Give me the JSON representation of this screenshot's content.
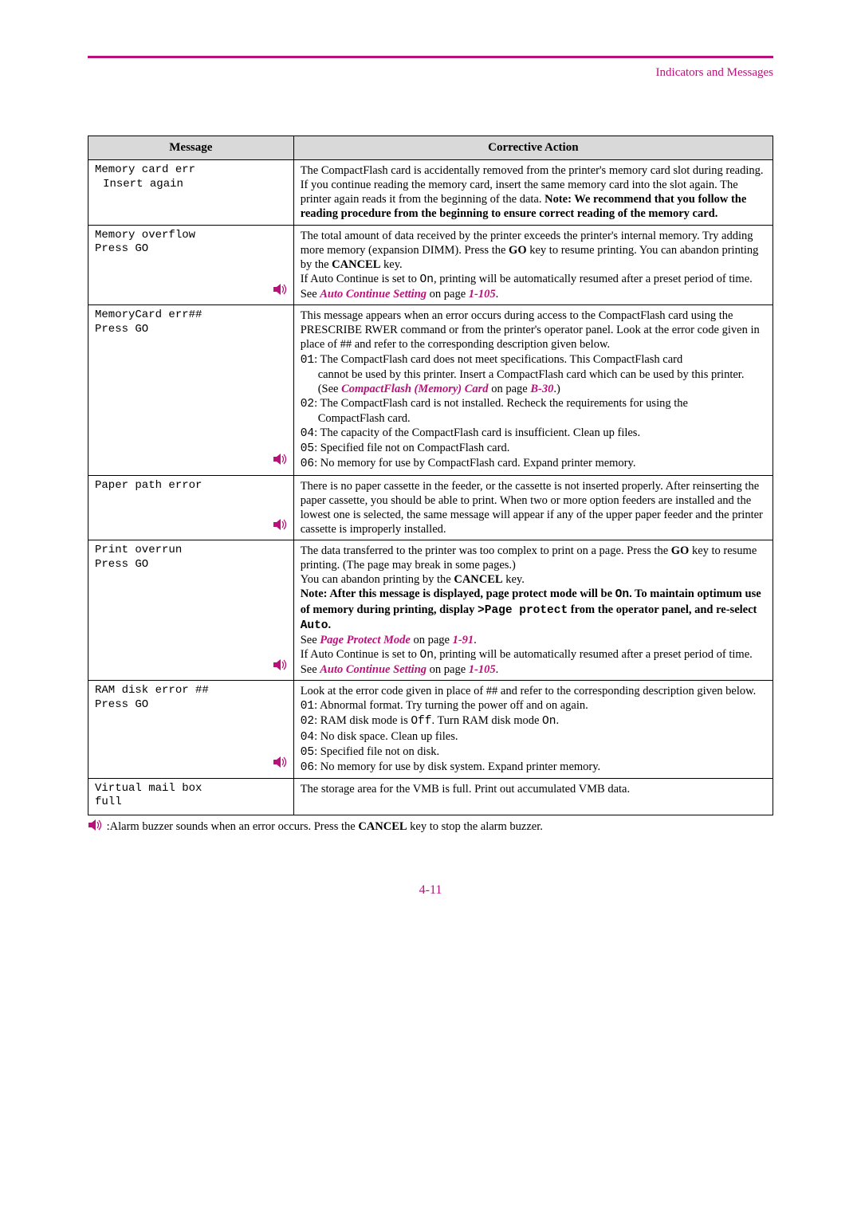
{
  "header": {
    "section_label": "Indicators and Messages"
  },
  "table": {
    "headers": {
      "message": "Message",
      "action": "Corrective Action"
    },
    "rows": [
      {
        "msg1": "Memory card err",
        "msg2": "Insert again",
        "buzzer": false,
        "action_html": "The CompactFlash card is accidentally removed from the printer's memory card slot during reading. If you continue reading the memory card, insert the same memory card into the slot again. The printer again reads it from the beginning of the data. <span class='bold'>Note: We recommend that you follow the reading procedure from the beginning to ensure correct reading of the memory card.</span>"
      },
      {
        "msg1": "Memory overflow",
        "msg2": "Press GO",
        "msg2_noindent": true,
        "buzzer": true,
        "action_html": "The total amount of data received by the printer exceeds the printer's internal memory. Try adding more memory (expansion DIMM). Press the <span class='bold'>GO</span> key to resume printing. You can abandon printing by the <span class='bold'>CANCEL</span> key.<br>If Auto Continue is set to <span class='mono'>On</span>, printing will be automatically resumed after a preset period of time. See <span class='link'>Auto Continue Setting</span> on page <span class='pagelink'>1-105</span>."
      },
      {
        "msg1": "MemoryCard err##",
        "msg2": "Press GO",
        "msg2_noindent": true,
        "buzzer": true,
        "action_html": "This message appears when an error occurs during access to the CompactFlash card using the PRESCRIBE RWER command or from the printer's operator panel. Look at the error code given in place of ## and refer to the corresponding description given below.<br><span class='mono'>01</span>: The CompactFlash card does not meet specifications.  This CompactFlash card<div class='indent'>cannot be used by this printer.  Insert a CompactFlash card which can be used by this printer.</div><div class='indent'>(See <span class='link'>CompactFlash (Memory) Card</span> on page <span class='pagelink'>B-30</span>.)</div><span class='mono'>02</span>: The CompactFlash card is not installed. Recheck the requirements for using the<div class='indent'>CompactFlash card.</div><span class='mono'>04</span>: The capacity of the CompactFlash card is insufficient. Clean up files.<br><span class='mono'>05</span>: Specified file not on CompactFlash card.<br><span class='mono'>06</span>: No memory for use by CompactFlash card. Expand printer memory."
      },
      {
        "msg1": "Paper path error",
        "msg2": "",
        "buzzer": true,
        "action_html": "There is no paper cassette in the feeder, or the cassette is not inserted properly. After reinserting the paper cassette, you should be able to print. When two or more option feeders are installed and the lowest one is selected, the same message will appear if any of the upper paper feeder and the printer cassette is improperly installed."
      },
      {
        "msg1": "Print overrun",
        "msg2": "Press GO",
        "msg2_noindent": true,
        "buzzer": true,
        "action_html": "The data transferred to the printer was too complex to print on a page. Press the <span class='bold'>GO</span> key to resume printing. (The page may break in some pages.)<br>You can abandon printing by the <span class='bold'>CANCEL</span> key.<br><span class='bold'>Note: After this message is displayed, page protect mode will be <span class='mono bold'>On</span>. To maintain optimum use of memory during printing, display <span class='mono bold'>&gt;Page protect</span> from the operator panel, and re-select <span class='mono bold'>Auto</span>.</span><br>See <span class='link'>Page Protect Mode</span> on page <span class='pagelink'>1-91</span>.<br>If Auto Continue is set to <span class='mono'>On</span>, printing will be automatically resumed after a preset period of time. See <span class='link'>Auto Continue Setting</span> on page <span class='pagelink'>1-105</span>."
      },
      {
        "msg1": "RAM disk error ##",
        "msg2": "Press GO",
        "msg2_noindent": true,
        "buzzer": true,
        "action_html": "Look at the error code given in place of ## and refer to the corresponding description given below.<br><span class='mono'>01</span>: Abnormal format. Try turning the power off and on again.<br><span class='mono'>02</span>: RAM disk mode is <span class='mono'>Off</span>. Turn RAM disk mode <span class='mono'>On</span>.<br><span class='mono'>04</span>: No disk space. Clean up files.<br><span class='mono'>05</span>: Specified file not on disk.<br><span class='mono'>06</span>: No memory for use by disk system. Expand printer memory."
      },
      {
        "msg1": "Virtual mail box",
        "msg2": "full",
        "msg2_noindent": true,
        "buzzer": false,
        "action_html": "The storage area for the VMB is full. Print out accumulated VMB data."
      }
    ]
  },
  "footnote": ":Alarm buzzer sounds when an error occurs. Press the ",
  "footnote_key": "CANCEL",
  "footnote_tail": " key to stop the alarm buzzer.",
  "page_number": "4-11",
  "colors": {
    "accent": "#b8127a",
    "header_bg": "#d9d9d9",
    "border": "#000000"
  }
}
